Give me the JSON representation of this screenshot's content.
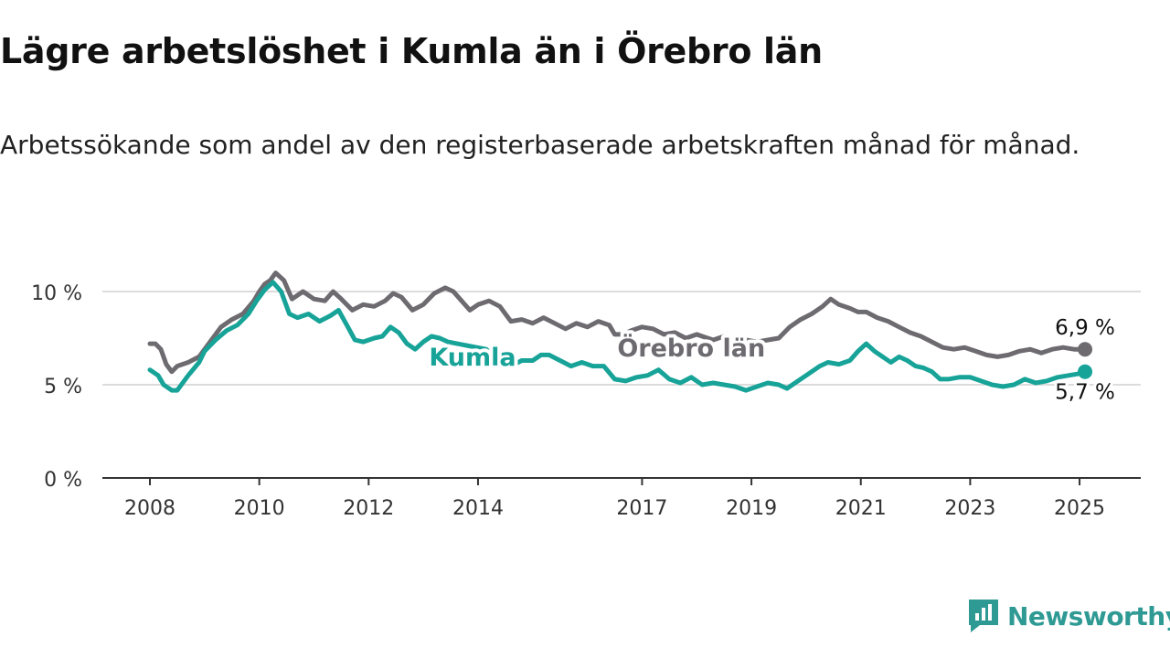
{
  "title": "Lägre arbetslöshet i Kumla än i Örebro län",
  "subtitle": "Arbetssökande som andel av den registerbaserade arbetskraften månad för månad.",
  "brand": {
    "name": "Newsworthy",
    "icon": "newsworthy-logo-icon",
    "color": "#2f9a94"
  },
  "chart_data": {
    "type": "line",
    "x_range": [
      2008.0,
      2025.25
    ],
    "ylim": [
      0,
      12
    ],
    "y_ticks": [
      {
        "value": 0,
        "label": "0 %"
      },
      {
        "value": 5,
        "label": "5 %"
      },
      {
        "value": 10,
        "label": "10 %"
      }
    ],
    "x_ticks": [
      {
        "value": 2008,
        "label": "2008"
      },
      {
        "value": 2010,
        "label": "2010"
      },
      {
        "value": 2012,
        "label": "2012"
      },
      {
        "value": 2014,
        "label": "2014"
      },
      {
        "value": 2017,
        "label": "2017"
      },
      {
        "value": 2019,
        "label": "2019"
      },
      {
        "value": 2021,
        "label": "2021"
      },
      {
        "value": 2023,
        "label": "2023"
      },
      {
        "value": 2025,
        "label": "2025"
      }
    ],
    "grid": true,
    "series": [
      {
        "name": "Örebro län",
        "color": "#6d6b70",
        "label_at": 2017.9,
        "end_label": "6,9 %",
        "points": [
          [
            2008.0,
            7.2
          ],
          [
            2008.1,
            7.2
          ],
          [
            2008.2,
            6.9
          ],
          [
            2008.3,
            6.1
          ],
          [
            2008.4,
            5.7
          ],
          [
            2008.5,
            6.0
          ],
          [
            2008.7,
            6.2
          ],
          [
            2008.9,
            6.5
          ],
          [
            2009.1,
            7.3
          ],
          [
            2009.3,
            8.1
          ],
          [
            2009.5,
            8.5
          ],
          [
            2009.7,
            8.8
          ],
          [
            2009.9,
            9.5
          ],
          [
            2010.0,
            10.0
          ],
          [
            2010.1,
            10.4
          ],
          [
            2010.2,
            10.6
          ],
          [
            2010.3,
            11.0
          ],
          [
            2010.45,
            10.6
          ],
          [
            2010.6,
            9.6
          ],
          [
            2010.8,
            10.0
          ],
          [
            2011.0,
            9.6
          ],
          [
            2011.2,
            9.5
          ],
          [
            2011.35,
            10.0
          ],
          [
            2011.5,
            9.6
          ],
          [
            2011.7,
            9.0
          ],
          [
            2011.9,
            9.3
          ],
          [
            2012.1,
            9.2
          ],
          [
            2012.3,
            9.5
          ],
          [
            2012.45,
            9.9
          ],
          [
            2012.6,
            9.7
          ],
          [
            2012.8,
            9.0
          ],
          [
            2013.0,
            9.3
          ],
          [
            2013.2,
            9.9
          ],
          [
            2013.4,
            10.2
          ],
          [
            2013.55,
            10.0
          ],
          [
            2013.7,
            9.5
          ],
          [
            2013.85,
            9.0
          ],
          [
            2014.0,
            9.3
          ],
          [
            2014.2,
            9.5
          ],
          [
            2014.4,
            9.2
          ],
          [
            2014.6,
            8.4
          ],
          [
            2014.8,
            8.5
          ],
          [
            2015.0,
            8.3
          ],
          [
            2015.2,
            8.6
          ],
          [
            2015.4,
            8.3
          ],
          [
            2015.6,
            8.0
          ],
          [
            2015.8,
            8.3
          ],
          [
            2016.0,
            8.1
          ],
          [
            2016.2,
            8.4
          ],
          [
            2016.4,
            8.2
          ],
          [
            2016.5,
            7.7
          ],
          [
            2016.65,
            7.7
          ],
          [
            2016.8,
            7.9
          ],
          [
            2017.0,
            8.1
          ],
          [
            2017.2,
            8.0
          ],
          [
            2017.4,
            7.7
          ],
          [
            2017.6,
            7.8
          ],
          [
            2017.8,
            7.5
          ],
          [
            2017.9,
            7.6
          ],
          [
            2018.0,
            7.7
          ],
          [
            2018.1,
            7.6
          ],
          [
            2018.3,
            7.4
          ],
          [
            2018.5,
            7.6
          ],
          [
            2018.7,
            7.3
          ],
          [
            2018.9,
            7.4
          ],
          [
            2019.1,
            7.3
          ],
          [
            2019.3,
            7.4
          ],
          [
            2019.5,
            7.5
          ],
          [
            2019.7,
            8.1
          ],
          [
            2019.9,
            8.5
          ],
          [
            2020.1,
            8.8
          ],
          [
            2020.3,
            9.2
          ],
          [
            2020.45,
            9.6
          ],
          [
            2020.6,
            9.3
          ],
          [
            2020.8,
            9.1
          ],
          [
            2020.95,
            8.9
          ],
          [
            2021.1,
            8.9
          ],
          [
            2021.3,
            8.6
          ],
          [
            2021.5,
            8.4
          ],
          [
            2021.7,
            8.1
          ],
          [
            2021.9,
            7.8
          ],
          [
            2022.1,
            7.6
          ],
          [
            2022.3,
            7.3
          ],
          [
            2022.5,
            7.0
          ],
          [
            2022.7,
            6.9
          ],
          [
            2022.9,
            7.0
          ],
          [
            2023.1,
            6.8
          ],
          [
            2023.3,
            6.6
          ],
          [
            2023.5,
            6.5
          ],
          [
            2023.7,
            6.6
          ],
          [
            2023.9,
            6.8
          ],
          [
            2024.1,
            6.9
          ],
          [
            2024.3,
            6.7
          ],
          [
            2024.5,
            6.9
          ],
          [
            2024.7,
            7.0
          ],
          [
            2024.9,
            6.9
          ],
          [
            2025.1,
            6.9
          ]
        ]
      },
      {
        "name": "Kumla",
        "color": "#17a398",
        "label_at": 2013.9,
        "end_label": "5,7 %",
        "points": [
          [
            2008.0,
            5.8
          ],
          [
            2008.15,
            5.5
          ],
          [
            2008.25,
            5.0
          ],
          [
            2008.4,
            4.7
          ],
          [
            2008.5,
            4.7
          ],
          [
            2008.7,
            5.5
          ],
          [
            2008.9,
            6.2
          ],
          [
            2009.0,
            6.8
          ],
          [
            2009.2,
            7.4
          ],
          [
            2009.4,
            7.9
          ],
          [
            2009.6,
            8.2
          ],
          [
            2009.8,
            8.8
          ],
          [
            2009.95,
            9.5
          ],
          [
            2010.1,
            10.1
          ],
          [
            2010.25,
            10.5
          ],
          [
            2010.4,
            10.0
          ],
          [
            2010.55,
            8.8
          ],
          [
            2010.7,
            8.6
          ],
          [
            2010.9,
            8.8
          ],
          [
            2011.1,
            8.4
          ],
          [
            2011.3,
            8.7
          ],
          [
            2011.45,
            9.0
          ],
          [
            2011.6,
            8.2
          ],
          [
            2011.75,
            7.4
          ],
          [
            2011.9,
            7.3
          ],
          [
            2012.1,
            7.5
          ],
          [
            2012.25,
            7.6
          ],
          [
            2012.4,
            8.1
          ],
          [
            2012.55,
            7.8
          ],
          [
            2012.7,
            7.2
          ],
          [
            2012.85,
            6.9
          ],
          [
            2013.0,
            7.3
          ],
          [
            2013.15,
            7.6
          ],
          [
            2013.3,
            7.5
          ],
          [
            2013.45,
            7.3
          ],
          [
            2014.15,
            6.9
          ],
          [
            2014.3,
            6.5
          ],
          [
            2014.45,
            6.1
          ],
          [
            2014.6,
            6.0
          ],
          [
            2014.8,
            6.3
          ],
          [
            2015.0,
            6.3
          ],
          [
            2015.15,
            6.6
          ],
          [
            2015.3,
            6.6
          ],
          [
            2015.5,
            6.3
          ],
          [
            2015.7,
            6.0
          ],
          [
            2015.9,
            6.2
          ],
          [
            2016.1,
            6.0
          ],
          [
            2016.3,
            6.0
          ],
          [
            2016.5,
            5.3
          ],
          [
            2016.7,
            5.2
          ],
          [
            2016.9,
            5.4
          ],
          [
            2017.1,
            5.5
          ],
          [
            2017.3,
            5.8
          ],
          [
            2017.5,
            5.3
          ],
          [
            2017.7,
            5.1
          ],
          [
            2017.9,
            5.4
          ],
          [
            2018.1,
            5.0
          ],
          [
            2018.3,
            5.1
          ],
          [
            2018.5,
            5.0
          ],
          [
            2018.7,
            4.9
          ],
          [
            2018.9,
            4.7
          ],
          [
            2019.1,
            4.9
          ],
          [
            2019.3,
            5.1
          ],
          [
            2019.5,
            5.0
          ],
          [
            2019.65,
            4.8
          ],
          [
            2019.85,
            5.2
          ],
          [
            2020.05,
            5.6
          ],
          [
            2020.25,
            6.0
          ],
          [
            2020.4,
            6.2
          ],
          [
            2020.6,
            6.1
          ],
          [
            2020.8,
            6.3
          ],
          [
            2020.95,
            6.8
          ],
          [
            2021.1,
            7.2
          ],
          [
            2021.25,
            6.8
          ],
          [
            2021.4,
            6.5
          ],
          [
            2021.55,
            6.2
          ],
          [
            2021.7,
            6.5
          ],
          [
            2021.85,
            6.3
          ],
          [
            2022.0,
            6.0
          ],
          [
            2022.15,
            5.9
          ],
          [
            2022.3,
            5.7
          ],
          [
            2022.45,
            5.3
          ],
          [
            2022.6,
            5.3
          ],
          [
            2022.8,
            5.4
          ],
          [
            2023.0,
            5.4
          ],
          [
            2023.2,
            5.2
          ],
          [
            2023.4,
            5.0
          ],
          [
            2023.6,
            4.9
          ],
          [
            2023.8,
            5.0
          ],
          [
            2024.0,
            5.3
          ],
          [
            2024.2,
            5.1
          ],
          [
            2024.4,
            5.2
          ],
          [
            2024.6,
            5.4
          ],
          [
            2024.8,
            5.5
          ],
          [
            2025.0,
            5.6
          ],
          [
            2025.1,
            5.7
          ]
        ]
      }
    ]
  }
}
